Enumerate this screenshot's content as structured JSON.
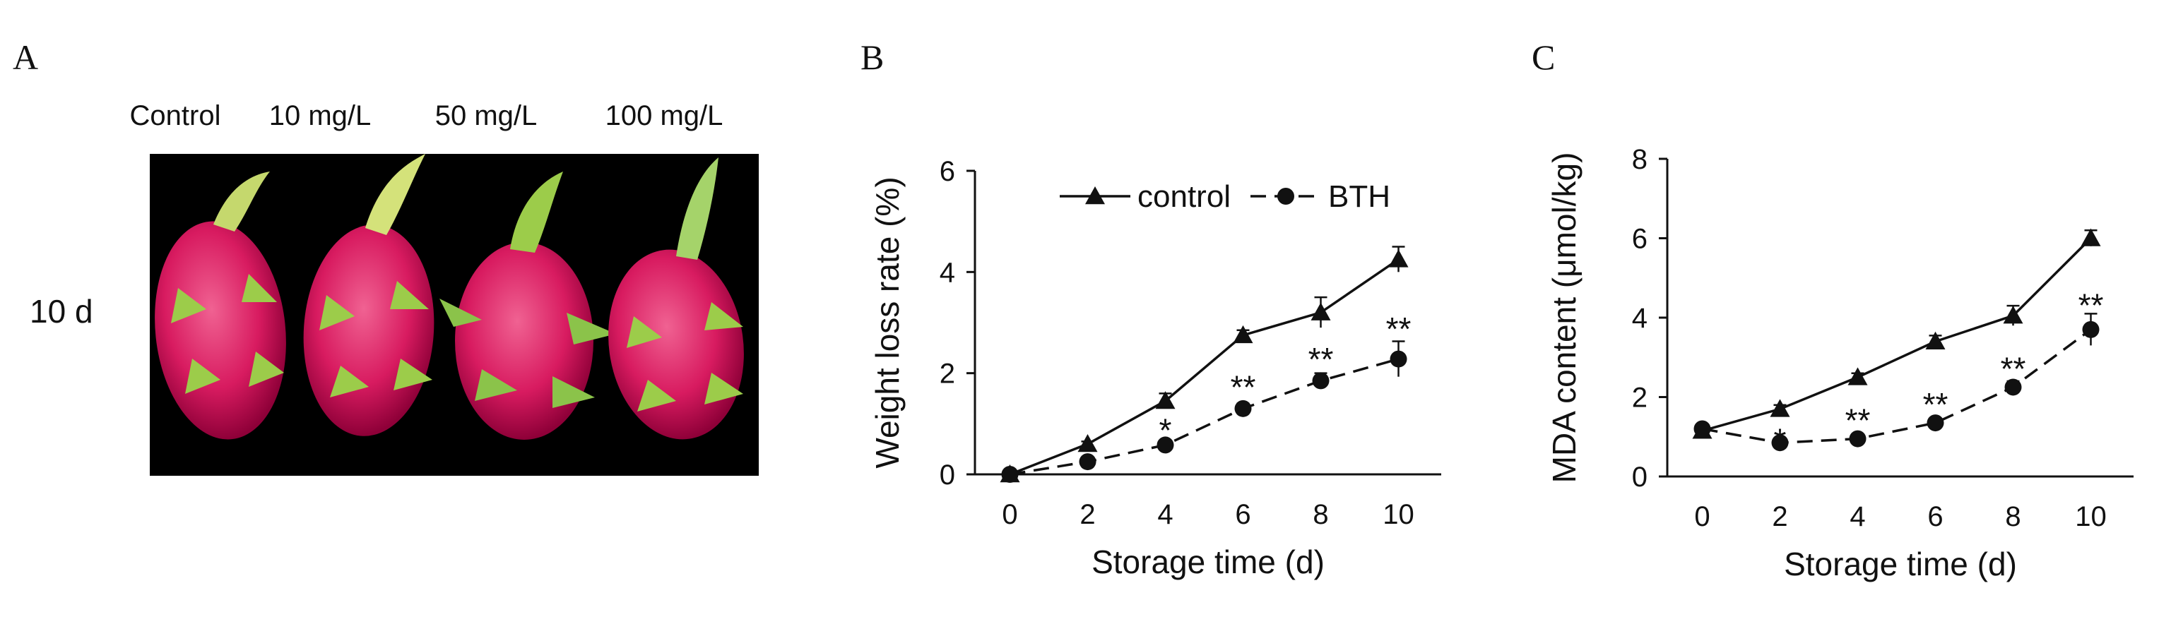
{
  "panel_a": {
    "letter": "A",
    "treatments": [
      "Control",
      "10 mg/L",
      "50 mg/L",
      "100 mg/L"
    ],
    "day_label": "10 d",
    "colors": {
      "fruit": "#d81b60",
      "bract": "#9ccc4a",
      "background": "#000000"
    }
  },
  "chart_data": [
    {
      "panel": "B",
      "type": "line",
      "xlabel": "Storage time (d)",
      "ylabel": "Weight loss  rate (%)",
      "x": [
        0,
        2,
        4,
        6,
        8,
        10
      ],
      "xticks": [
        "0",
        "2",
        "4",
        "6",
        "8",
        "10"
      ],
      "yticks": [
        "0",
        "2",
        "4",
        "6"
      ],
      "xlim": [
        -0.9,
        11.1
      ],
      "ylim": [
        0,
        6
      ],
      "series": [
        {
          "name": "control",
          "marker": "triangle",
          "dash": false,
          "values": [
            0,
            0.6,
            1.45,
            2.75,
            3.2,
            4.25
          ],
          "errors": [
            0,
            0.05,
            0.15,
            0.1,
            0.3,
            0.25
          ]
        },
        {
          "name": "BTH",
          "marker": "circle",
          "dash": true,
          "values": [
            0,
            0.25,
            0.58,
            1.3,
            1.85,
            2.28
          ],
          "errors": [
            0,
            0.05,
            0.08,
            0.1,
            0.15,
            0.35
          ]
        }
      ],
      "annotations": [
        {
          "x": 4,
          "text": "*",
          "y": 0.9
        },
        {
          "x": 6,
          "text": "**",
          "y": 1.75
        },
        {
          "x": 8,
          "text": "**",
          "y": 2.3
        },
        {
          "x": 10,
          "text": "**",
          "y": 2.9
        }
      ],
      "legend": {
        "position": "top",
        "labels": [
          "control",
          "BTH"
        ]
      }
    },
    {
      "panel": "C",
      "type": "line",
      "xlabel": "Storage time (d)",
      "ylabel": "MDA content (μmol/kg)",
      "x": [
        0,
        2,
        4,
        6,
        8,
        10
      ],
      "xticks": [
        "0",
        "2",
        "4",
        "6",
        "8",
        "10"
      ],
      "yticks": [
        "0",
        "2",
        "4",
        "6",
        "8"
      ],
      "xlim": [
        -0.9,
        11.1
      ],
      "ylim": [
        0,
        8
      ],
      "series": [
        {
          "name": "control",
          "marker": "triangle",
          "dash": false,
          "values": [
            1.15,
            1.7,
            2.5,
            3.4,
            4.05,
            6.0
          ],
          "errors": [
            0.05,
            0.1,
            0.1,
            0.15,
            0.25,
            0.2
          ]
        },
        {
          "name": "BTH",
          "marker": "circle",
          "dash": true,
          "values": [
            1.2,
            0.85,
            0.95,
            1.35,
            2.25,
            3.7
          ],
          "errors": [
            0.05,
            0.1,
            0.08,
            0.12,
            0.15,
            0.4
          ]
        }
      ],
      "annotations": [
        {
          "x": 2,
          "text": "*",
          "y": 0.95
        },
        {
          "x": 4,
          "text": "**",
          "y": 1.45
        },
        {
          "x": 6,
          "text": "**",
          "y": 1.85
        },
        {
          "x": 8,
          "text": "**",
          "y": 2.75
        },
        {
          "x": 10,
          "text": "**",
          "y": 4.35
        }
      ]
    }
  ]
}
